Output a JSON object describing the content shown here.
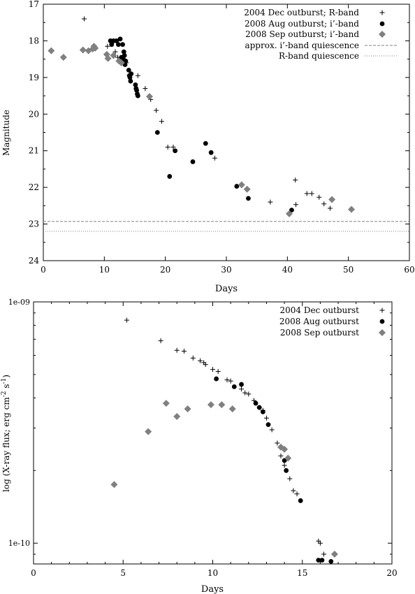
{
  "colors": {
    "black": "#000000",
    "gray": "#808080",
    "grid": "#000000"
  },
  "chart_data": [
    {
      "type": "scatter",
      "xlabel": "Days",
      "ylabel": "Magnitude",
      "xlim": [
        0,
        60
      ],
      "ylim": [
        17,
        24
      ],
      "y_inverted": true,
      "xticks": [
        "0",
        "10",
        "20",
        "30",
        "40",
        "50",
        "60"
      ],
      "yticks": [
        "17",
        "18",
        "19",
        "20",
        "21",
        "22",
        "23",
        "24"
      ],
      "legend_placement": "top-right",
      "series": [
        {
          "name": "2004 Dec outburst; R-band",
          "marker": "plus",
          "points": [
            [
              6.7,
              17.4
            ],
            [
              10.5,
              18.15
            ],
            [
              11.8,
              18.3
            ],
            [
              12.2,
              18.45
            ],
            [
              13.6,
              18.6
            ],
            [
              15.5,
              18.95
            ],
            [
              16.7,
              19.3
            ],
            [
              17.6,
              19.6
            ],
            [
              18.5,
              19.9
            ],
            [
              19.4,
              20.2
            ],
            [
              20.4,
              20.9
            ],
            [
              21.3,
              20.9
            ],
            [
              28.1,
              21.2
            ],
            [
              37.2,
              22.4
            ],
            [
              41.3,
              21.8
            ],
            [
              41.4,
              22.47
            ],
            [
              43.2,
              22.17
            ],
            [
              44,
              22.17
            ],
            [
              45.2,
              22.27
            ],
            [
              46,
              22.45
            ],
            [
              47,
              22.57
            ]
          ]
        },
        {
          "name": "2008 Aug outburst; i’-band",
          "marker": "circle",
          "points": [
            [
              11.0,
              18.0
            ],
            [
              11.2,
              18.1
            ],
            [
              11.5,
              18.0
            ],
            [
              12.0,
              18.0
            ],
            [
              12.3,
              18.1
            ],
            [
              12.6,
              17.95
            ],
            [
              13.0,
              18.1
            ],
            [
              12.8,
              18.45
            ],
            [
              13.1,
              18.5
            ],
            [
              13.2,
              18.3
            ],
            [
              13.3,
              18.4
            ],
            [
              13.4,
              18.65
            ],
            [
              13.5,
              18.55
            ],
            [
              14.0,
              18.8
            ],
            [
              14.1,
              18.95
            ],
            [
              14.2,
              19.0
            ],
            [
              14.3,
              19.1
            ],
            [
              14.4,
              18.9
            ],
            [
              15.1,
              19.2
            ],
            [
              15.2,
              19.3
            ],
            [
              15.3,
              19.35
            ],
            [
              15.4,
              19.45
            ],
            [
              15.5,
              19.5
            ],
            [
              18.7,
              20.5
            ],
            [
              20.7,
              21.7
            ],
            [
              21.6,
              21.0
            ],
            [
              24.5,
              21.3
            ],
            [
              26.6,
              20.8
            ],
            [
              27.5,
              21.05
            ],
            [
              31.7,
              21.97
            ],
            [
              33.6,
              22.3
            ],
            [
              40.7,
              22.62
            ]
          ]
        },
        {
          "name": "2008 Sep outburst; i’-band",
          "marker": "diamond",
          "points": [
            [
              1.3,
              18.27
            ],
            [
              3.3,
              18.45
            ],
            [
              6.5,
              18.25
            ],
            [
              7.4,
              18.27
            ],
            [
              8.1,
              18.22
            ],
            [
              8.3,
              18.15
            ],
            [
              8.5,
              18.2
            ],
            [
              10.4,
              18.37
            ],
            [
              10.6,
              18.48
            ],
            [
              11.5,
              18.4
            ],
            [
              12.4,
              18.55
            ],
            [
              12.8,
              18.6
            ],
            [
              17.4,
              19.52
            ],
            [
              32.5,
              21.93
            ],
            [
              33.4,
              22.05
            ],
            [
              40.3,
              22.72
            ],
            [
              47.3,
              22.33
            ],
            [
              50.5,
              22.6
            ]
          ]
        }
      ],
      "reference_lines": [
        {
          "name": "approx. i’-band quiescence",
          "y": 22.93,
          "style": "dashed"
        },
        {
          "name": "R-band quiescence",
          "y": 23.2,
          "style": "dotted"
        }
      ]
    },
    {
      "type": "scatter",
      "xlabel": "Days",
      "ylabel": "log (X-ray flux; erg cm",
      "ylabel_sup1": "-2",
      "ylabel_mid": " s",
      "ylabel_sup2": "-1",
      "ylabel_end": ")",
      "xlim": [
        0,
        20
      ],
      "ylim": [
        8.2e-11,
        1e-09
      ],
      "yscale": "log",
      "xticks": [
        "0",
        "5",
        "10",
        "15",
        "20"
      ],
      "ytick_labels": [
        "1e-10",
        "1e-09"
      ],
      "ytick_values": [
        1e-10,
        1e-09
      ],
      "legend_placement": "top-right",
      "series": [
        {
          "name": "2004 Dec outburst",
          "marker": "plus",
          "points": [
            [
              5.2,
              8.4e-10
            ],
            [
              7.1,
              6.9e-10
            ],
            [
              8.0,
              6.3e-10
            ],
            [
              8.4,
              6.25e-10
            ],
            [
              8.9,
              5.85e-10
            ],
            [
              9.3,
              5.7e-10
            ],
            [
              9.5,
              5.6e-10
            ],
            [
              9.6,
              5.5e-10
            ],
            [
              10.0,
              5.25e-10
            ],
            [
              10.3,
              5.15e-10
            ],
            [
              10.8,
              4.75e-10
            ],
            [
              11.0,
              4.7e-10
            ],
            [
              11.6,
              4.35e-10
            ],
            [
              11.8,
              4.2e-10
            ],
            [
              12.0,
              4.15e-10
            ],
            [
              12.3,
              3.9e-10
            ],
            [
              12.6,
              3.65e-10
            ],
            [
              12.8,
              3.55e-10
            ],
            [
              13.0,
              3.3e-10
            ],
            [
              13.3,
              2.95e-10
            ],
            [
              13.6,
              2.6e-10
            ],
            [
              13.8,
              2.3e-10
            ],
            [
              14.0,
              2.1e-10
            ],
            [
              14.3,
              1.85e-10
            ],
            [
              14.5,
              1.65e-10
            ],
            [
              14.7,
              1.6e-10
            ],
            [
              15.9,
              1.02e-10
            ],
            [
              16.0,
              1e-10
            ],
            [
              16.2,
              9e-11
            ]
          ]
        },
        {
          "name": "2008 Aug outburst",
          "marker": "circle",
          "points": [
            [
              10.2,
              4.8e-10
            ],
            [
              11.2,
              4.45e-10
            ],
            [
              11.6,
              4.55e-10
            ],
            [
              12.4,
              3.8e-10
            ],
            [
              12.6,
              3.65e-10
            ],
            [
              12.8,
              3.5e-10
            ],
            [
              13.1,
              3.1e-10
            ],
            [
              14.0,
              2.2e-10
            ],
            [
              14.1,
              2e-10
            ],
            [
              14.9,
              1.5e-10
            ],
            [
              15.9,
              8.5e-11
            ],
            [
              16.1,
              8.5e-11
            ],
            [
              16.6,
              8.4e-11
            ]
          ]
        },
        {
          "name": "2008 Sep outburst",
          "marker": "diamond",
          "points": [
            [
              4.5,
              1.75e-10
            ],
            [
              6.4,
              2.9e-10
            ],
            [
              7.4,
              3.8e-10
            ],
            [
              8.0,
              3.35e-10
            ],
            [
              8.6,
              3.6e-10
            ],
            [
              9.9,
              3.75e-10
            ],
            [
              10.5,
              3.75e-10
            ],
            [
              11.1,
              3.6e-10
            ],
            [
              13.8,
              2.5e-10
            ],
            [
              14.0,
              2.45e-10
            ],
            [
              14.2,
              2.25e-10
            ],
            [
              16.8,
              9e-11
            ]
          ]
        }
      ]
    }
  ]
}
